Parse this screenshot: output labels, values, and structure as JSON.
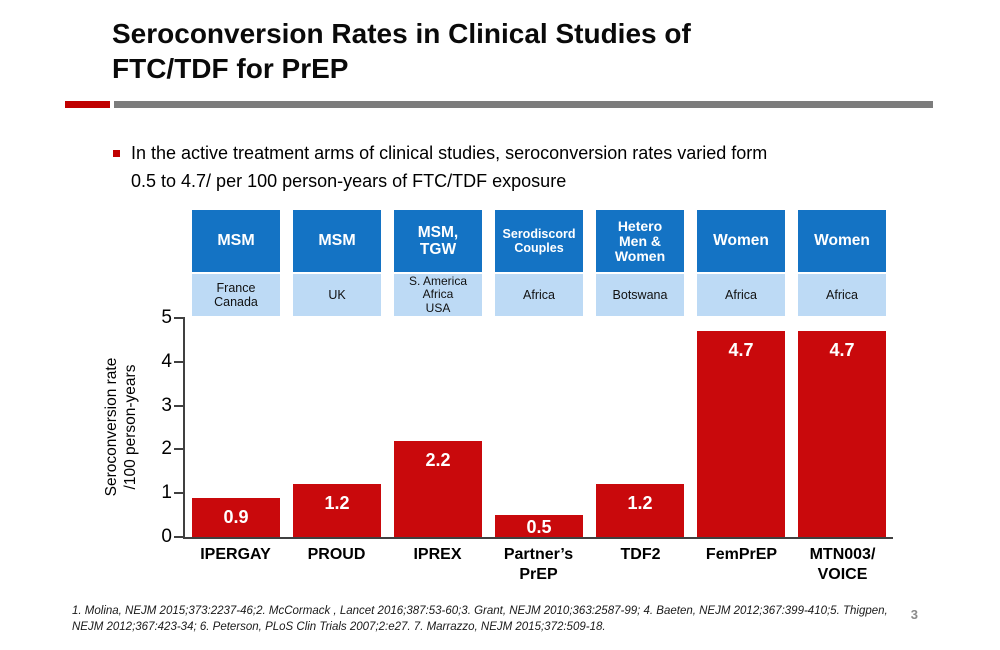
{
  "slide": {
    "title_lines": [
      "Seroconversion Rates in Clinical Studies of",
      "FTC/TDF for PrEP"
    ],
    "bullet_lines": [
      "In the active treatment arms of clinical studies, seroconversion rates varied form",
      "0.5 to 4.7/ per 100 person-years of FTC/TDF exposure"
    ],
    "footnote": "1. Molina, NEJM 2015;373:2237-46;2. McCormack , Lancet 2016;387:53-60;3. Grant, NEJM 2010;363:2587-99; 4. Baeten, NEJM 2012;367:399-410;5. Thigpen, NEJM 2012;367:423-34; 6. Peterson, PLoS Clin Trials 2007;2:e27. 7. Marrazzo, NEJM 2015;372:509-18.",
    "page_number": "3"
  },
  "chart_data": {
    "type": "bar",
    "categories": [
      "IPERGAY",
      "PROUD",
      "IPREX",
      "Partner’s PrEP",
      "TDF2",
      "FemPrEP",
      "MTN003/VOICE"
    ],
    "values": [
      0.9,
      1.2,
      2.2,
      0.5,
      1.2,
      4.7,
      4.7
    ],
    "bar_labels": [
      "0.9",
      "1.2",
      "2.2",
      "0.5",
      "1.2",
      "4.7",
      "4.7"
    ],
    "category_lines": [
      [
        "IPERGAY"
      ],
      [
        "PROUD"
      ],
      [
        "IPREX"
      ],
      [
        "Partner’s",
        "PrEP"
      ],
      [
        "TDF2"
      ],
      [
        "FemPrEP"
      ],
      [
        "MTN003/",
        "VOICE"
      ]
    ],
    "population_groups": [
      "MSM",
      "MSM",
      "MSM, TGW",
      "Serodiscord Couples",
      "Hetero Men & Women",
      "Women",
      "Women"
    ],
    "population_lines": [
      [
        "MSM"
      ],
      [
        "MSM"
      ],
      [
        "MSM,",
        "TGW"
      ],
      [
        "Serodiscord",
        "Couples"
      ],
      [
        "Hetero",
        "Men &",
        "Women"
      ],
      [
        "Women"
      ],
      [
        "Women"
      ]
    ],
    "locations": [
      "France Canada",
      "UK",
      "S. America Africa USA",
      "Africa",
      "Botswana",
      "Africa",
      "Africa"
    ],
    "location_lines": [
      [
        "France",
        "Canada"
      ],
      [
        "UK"
      ],
      [
        "S. America",
        "Africa",
        "USA"
      ],
      [
        "Africa"
      ],
      [
        "Botswana"
      ],
      [
        "Africa"
      ],
      [
        "Africa"
      ]
    ],
    "ylabel_lines": [
      "Seroconversion rate",
      "/100 person-years"
    ],
    "ylim": [
      0,
      5
    ],
    "yticks": [
      "0",
      "1",
      "2",
      "3",
      "4",
      "5"
    ],
    "gridlines": false,
    "legend": false
  },
  "colors": {
    "bar": "#C9090C",
    "population_box": "#1473C4",
    "location_box": "#BDDAF5",
    "divider_red": "#C00000",
    "divider_gray": "#7C7C7C",
    "bullet_marker": "#C00000",
    "axis": "#404040",
    "page_number": "#8A8A8A"
  }
}
